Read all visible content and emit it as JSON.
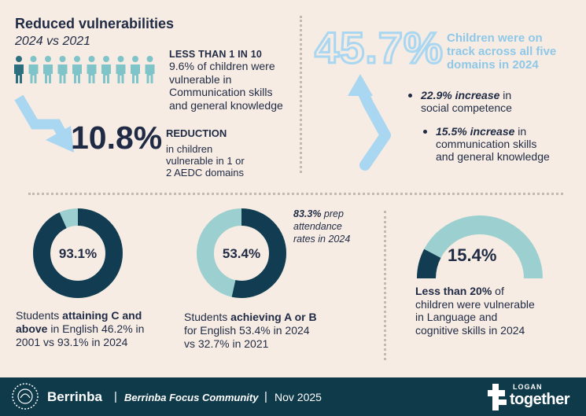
{
  "top_left": {
    "title": "Reduced vulnerabilities",
    "subtitle": "2024 vs 2021",
    "people_total": 10,
    "people_highlighted": 1,
    "stat1_heading": "LESS THAN 1 IN 10",
    "stat1_line1": "9.6% of children were",
    "stat1_line2": "vulnerable in",
    "stat1_line3": "Communication skills",
    "stat1_line4": "and general knowledge",
    "big_number": "10.8%",
    "reduction_heading": "REDUCTION",
    "reduction_line1": "in children",
    "reduction_line2": "vulnerable in 1 or",
    "reduction_line3": "2 AEDC domains"
  },
  "top_right": {
    "big_number": "45.7%",
    "caption_line1": "Children were on",
    "caption_line2": "track across all five",
    "caption_line3": "domains in 2024",
    "bullet1_bold": "22.9% increase",
    "bullet1_rest": " in",
    "bullet1_line2": "social competence",
    "bullet2_bold": "15.5% increase",
    "bullet2_rest": " in",
    "bullet2_line2": "communication skills",
    "bullet2_line3": "and general knowledge"
  },
  "donut1": {
    "value_label": "93.1%",
    "fraction": 0.931,
    "line1_pre": "Students ",
    "line1_bold": "attaining C and",
    "line2_bold": "above",
    "line2_rest": " in English 46.2% in",
    "line3": "2001 vs 93.1% in 2024"
  },
  "donut2": {
    "value_label": "53.4%",
    "fraction": 0.534,
    "side_pct": "83.3%",
    "side_line1": " prep",
    "side_line2": "attendance",
    "side_line3": "rates in 2024",
    "line1_pre": "Students ",
    "line1_bold": "achieving A or B",
    "line2": "for English 53.4% in 2024",
    "line3": "vs 32.7% in 2021"
  },
  "gauge": {
    "value_label": "15.4%",
    "fraction": 0.154,
    "line1_bold": "Less than 20%",
    "line1_rest": " of",
    "line2": "children were vulnerable",
    "line3": "in Language and",
    "line4": "cognitive skills in 2024"
  },
  "footer": {
    "community": "Berrinba",
    "focus": "Berrinba Focus Community",
    "separator": "|",
    "date": "Nov 2025",
    "logo_top": "LOGAN",
    "logo_bottom": "together"
  },
  "colors": {
    "navy": "#1f2a44",
    "dark_teal": "#123c52",
    "light_teal": "#9ccfcf",
    "light_blue": "#a9d6f0",
    "person_dark": "#2d6f7f",
    "person_light": "#7fc4c8",
    "footer_bg": "#0f3a4a"
  }
}
